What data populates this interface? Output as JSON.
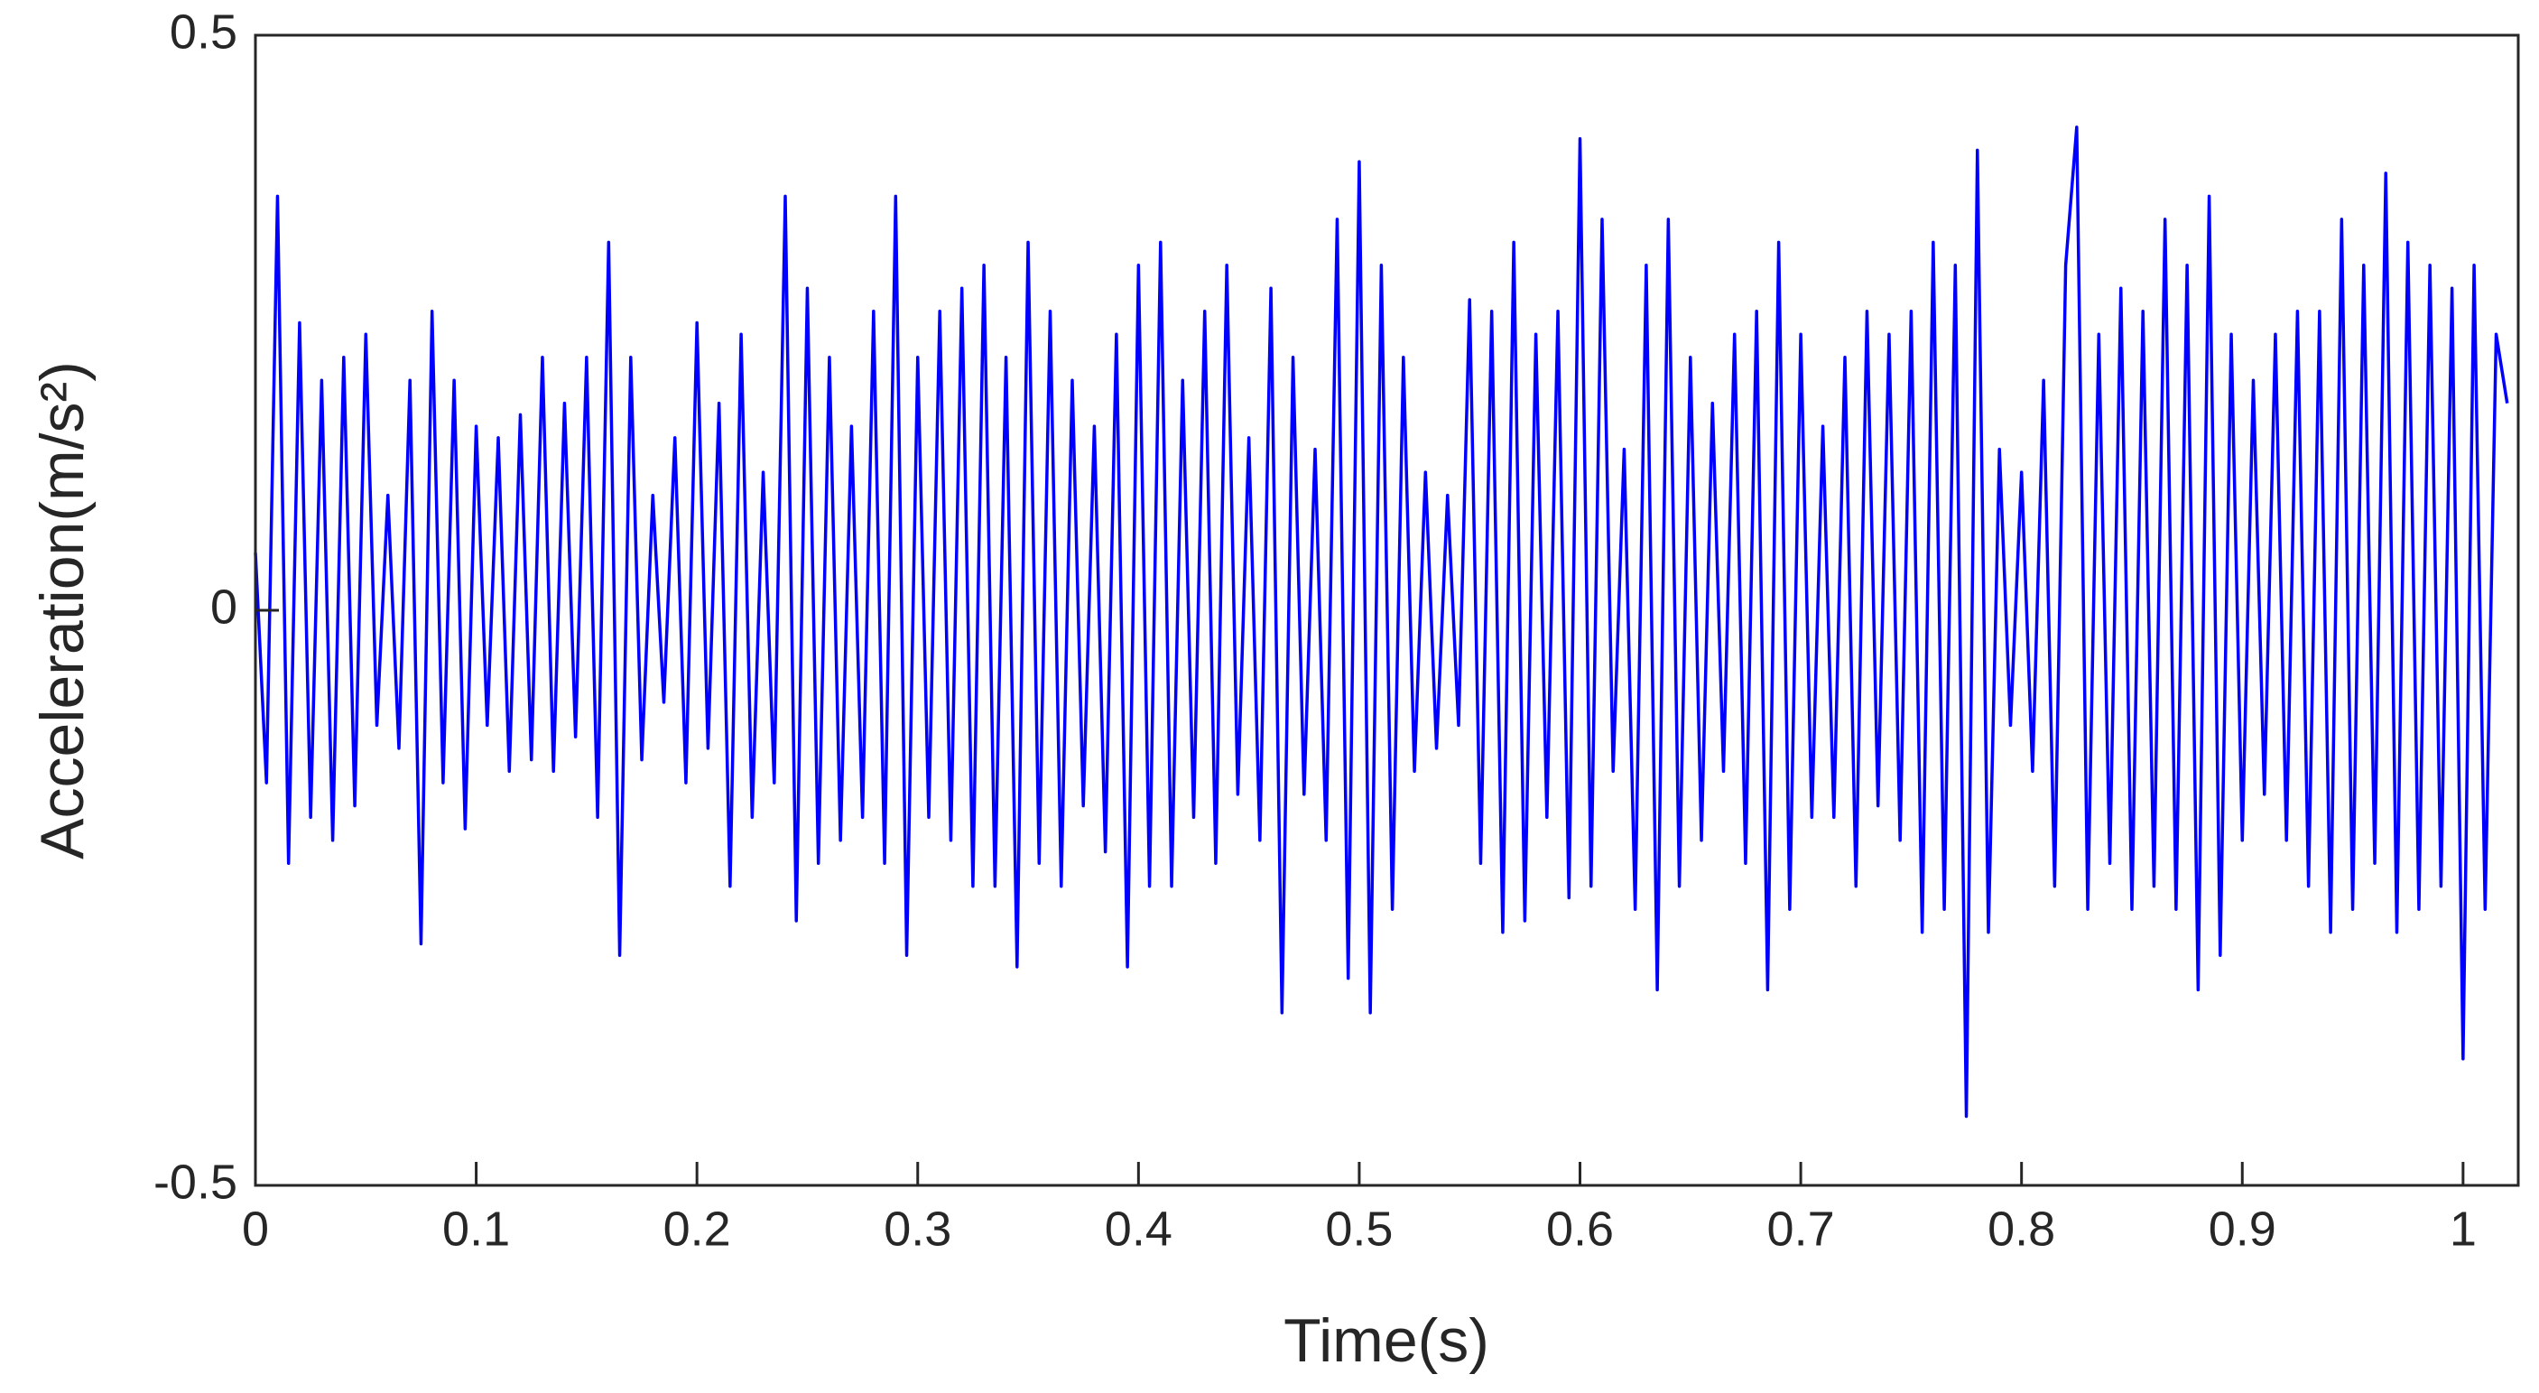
{
  "chart_data": {
    "type": "line",
    "x_label": "Time(s)",
    "y_label": "Acceleration(m/s²)",
    "xlim": [
      0,
      1.025
    ],
    "ylim": [
      -0.5,
      0.5
    ],
    "xticks": [
      0,
      0.1,
      0.2,
      0.3,
      0.4,
      0.5,
      0.6,
      0.7,
      0.8,
      0.9,
      1
    ],
    "yticks": [
      -0.5,
      0,
      0.5
    ],
    "grid": false,
    "series": [
      {
        "color": "#0000ff",
        "x": [
          0,
          0.005,
          0.01,
          0.015,
          0.02,
          0.025,
          0.03,
          0.035,
          0.04,
          0.045,
          0.05,
          0.055,
          0.06,
          0.065,
          0.07,
          0.075,
          0.08,
          0.085,
          0.09,
          0.095,
          0.1,
          0.105,
          0.11,
          0.115,
          0.12,
          0.125,
          0.13,
          0.135,
          0.14,
          0.145,
          0.15,
          0.155,
          0.16,
          0.165,
          0.17,
          0.175,
          0.18,
          0.185,
          0.19,
          0.195,
          0.2,
          0.205,
          0.21,
          0.215,
          0.22,
          0.225,
          0.23,
          0.235,
          0.24,
          0.245,
          0.25,
          0.255,
          0.26,
          0.265,
          0.27,
          0.275,
          0.28,
          0.285,
          0.29,
          0.295,
          0.3,
          0.305,
          0.31,
          0.315,
          0.32,
          0.325,
          0.33,
          0.335,
          0.34,
          0.345,
          0.35,
          0.355,
          0.36,
          0.365,
          0.37,
          0.375,
          0.38,
          0.385,
          0.39,
          0.395,
          0.4,
          0.405,
          0.41,
          0.415,
          0.42,
          0.425,
          0.43,
          0.435,
          0.44,
          0.445,
          0.45,
          0.455,
          0.46,
          0.465,
          0.47,
          0.475,
          0.48,
          0.485,
          0.49,
          0.495,
          0.5,
          0.505,
          0.51,
          0.515,
          0.52,
          0.525,
          0.53,
          0.535,
          0.54,
          0.545,
          0.55,
          0.555,
          0.56,
          0.565,
          0.57,
          0.575,
          0.58,
          0.585,
          0.59,
          0.595,
          0.6,
          0.605,
          0.61,
          0.615,
          0.62,
          0.625,
          0.63,
          0.635,
          0.64,
          0.645,
          0.65,
          0.655,
          0.66,
          0.665,
          0.67,
          0.675,
          0.68,
          0.685,
          0.69,
          0.695,
          0.7,
          0.705,
          0.71,
          0.715,
          0.72,
          0.725,
          0.73,
          0.735,
          0.74,
          0.745,
          0.75,
          0.755,
          0.76,
          0.765,
          0.77,
          0.775,
          0.78,
          0.785,
          0.79,
          0.795,
          0.8,
          0.805,
          0.81,
          0.815,
          0.82,
          0.825,
          0.83,
          0.835,
          0.84,
          0.845,
          0.85,
          0.855,
          0.86,
          0.865,
          0.87,
          0.875,
          0.88,
          0.885,
          0.89,
          0.895,
          0.9,
          0.905,
          0.91,
          0.915,
          0.92,
          0.925,
          0.93,
          0.935,
          0.94,
          0.945,
          0.95,
          0.955,
          0.96,
          0.965,
          0.97,
          0.975,
          0.98,
          0.985,
          0.99,
          0.995,
          1,
          1.005,
          1.01,
          1.015,
          1.02
        ],
        "values": [
          0.05,
          -0.15,
          0.36,
          -0.22,
          0.25,
          -0.18,
          0.2,
          -0.2,
          0.22,
          -0.17,
          0.24,
          -0.1,
          0.1,
          -0.12,
          0.2,
          -0.29,
          0.26,
          -0.15,
          0.2,
          -0.19,
          0.16,
          -0.1,
          0.15,
          -0.14,
          0.17,
          -0.13,
          0.22,
          -0.14,
          0.18,
          -0.11,
          0.22,
          -0.18,
          0.32,
          -0.3,
          0.22,
          -0.13,
          0.1,
          -0.08,
          0.15,
          -0.15,
          0.25,
          -0.12,
          0.18,
          -0.24,
          0.24,
          -0.18,
          0.12,
          -0.15,
          0.36,
          -0.27,
          0.28,
          -0.22,
          0.22,
          -0.2,
          0.16,
          -0.18,
          0.26,
          -0.22,
          0.36,
          -0.3,
          0.22,
          -0.18,
          0.26,
          -0.2,
          0.28,
          -0.24,
          0.3,
          -0.24,
          0.22,
          -0.31,
          0.32,
          -0.22,
          0.26,
          -0.24,
          0.2,
          -0.17,
          0.16,
          -0.21,
          0.24,
          -0.31,
          0.3,
          -0.24,
          0.32,
          -0.24,
          0.2,
          -0.18,
          0.26,
          -0.22,
          0.3,
          -0.16,
          0.15,
          -0.2,
          0.28,
          -0.35,
          0.22,
          -0.16,
          0.14,
          -0.2,
          0.34,
          -0.32,
          0.39,
          -0.35,
          0.3,
          -0.26,
          0.22,
          -0.14,
          0.12,
          -0.12,
          0.1,
          -0.1,
          0.27,
          -0.22,
          0.26,
          -0.28,
          0.32,
          -0.27,
          0.24,
          -0.18,
          0.26,
          -0.25,
          0.41,
          -0.24,
          0.34,
          -0.14,
          0.14,
          -0.26,
          0.3,
          -0.33,
          0.34,
          -0.24,
          0.22,
          -0.2,
          0.18,
          -0.14,
          0.24,
          -0.22,
          0.26,
          -0.33,
          0.32,
          -0.26,
          0.24,
          -0.18,
          0.16,
          -0.18,
          0.22,
          -0.24,
          0.26,
          -0.17,
          0.24,
          -0.2,
          0.26,
          -0.28,
          0.32,
          -0.26,
          0.3,
          -0.44,
          0.4,
          -0.28,
          0.14,
          -0.1,
          0.12,
          -0.14,
          0.2,
          -0.24,
          0.3,
          0.42,
          -0.26,
          0.24,
          -0.22,
          0.28,
          -0.26,
          0.26,
          -0.24,
          0.34,
          -0.26,
          0.3,
          -0.33,
          0.36,
          -0.3,
          0.24,
          -0.2,
          0.2,
          -0.16,
          0.24,
          -0.2,
          0.26,
          -0.24,
          0.26,
          -0.28,
          0.34,
          -0.26,
          0.3,
          -0.22,
          0.38,
          -0.28,
          0.32,
          -0.26,
          0.3,
          -0.24,
          0.28,
          -0.39,
          0.3,
          -0.26,
          0.24,
          0.18
        ]
      }
    ]
  }
}
